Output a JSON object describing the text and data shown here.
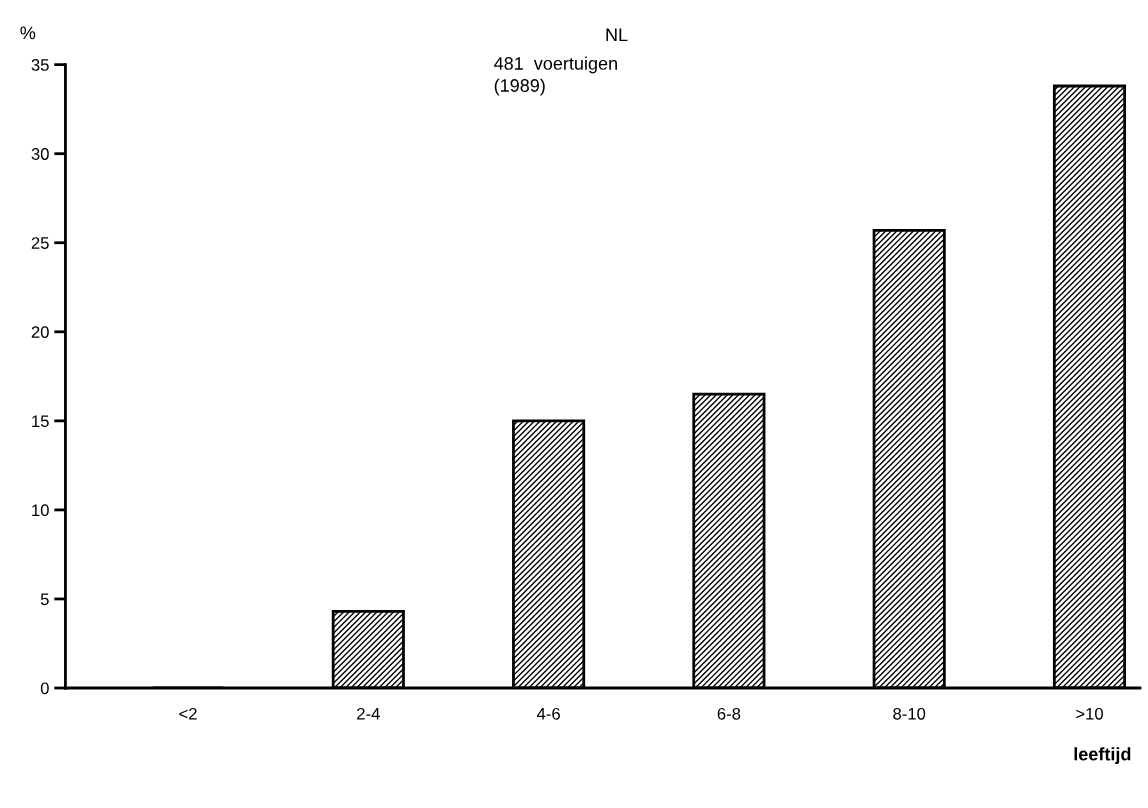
{
  "chart_data": {
    "type": "bar",
    "title": "NL",
    "subtitle": "481  voertuigen\n(1989)",
    "ylabel": "%",
    "xlabel": "leeftijd",
    "categories": [
      "<2",
      "2-4",
      "4-6",
      "6-8",
      "8-10",
      ">10"
    ],
    "values": [
      0,
      4.3,
      15.0,
      16.5,
      25.7,
      33.8
    ],
    "color": "#000000",
    "ylim": [
      0,
      35
    ],
    "yticks": [
      0,
      5,
      10,
      15,
      20,
      25,
      30,
      35
    ],
    "grid": false,
    "legend": false
  }
}
